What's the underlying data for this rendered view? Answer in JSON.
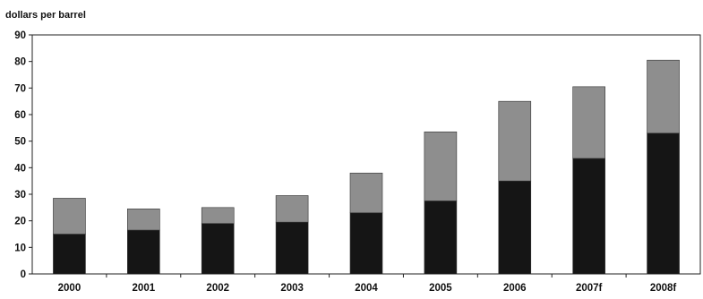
{
  "chart_data": {
    "type": "bar",
    "stacked": true,
    "title": "",
    "xlabel": "",
    "ylabel": "dollars per barrel",
    "ylim": [
      0,
      90
    ],
    "yticks": [
      0,
      10,
      20,
      30,
      40,
      50,
      60,
      70,
      80,
      90
    ],
    "grid": false,
    "categories": [
      "2000",
      "2001",
      "2002",
      "2003",
      "2004",
      "2005",
      "2006",
      "2007f",
      "2008f"
    ],
    "series": [
      {
        "values": [
          15,
          16.5,
          19,
          19.5,
          23,
          27.5,
          35,
          43.5,
          53
        ],
        "color": "#151515"
      },
      {
        "values": [
          13.5,
          8,
          6,
          10,
          15,
          26,
          30,
          27,
          27.5
        ],
        "color": "#8e8e8e"
      }
    ],
    "totals": [
      28.5,
      24.5,
      25,
      29.5,
      38,
      53.5,
      65,
      70.5,
      80.5
    ]
  }
}
